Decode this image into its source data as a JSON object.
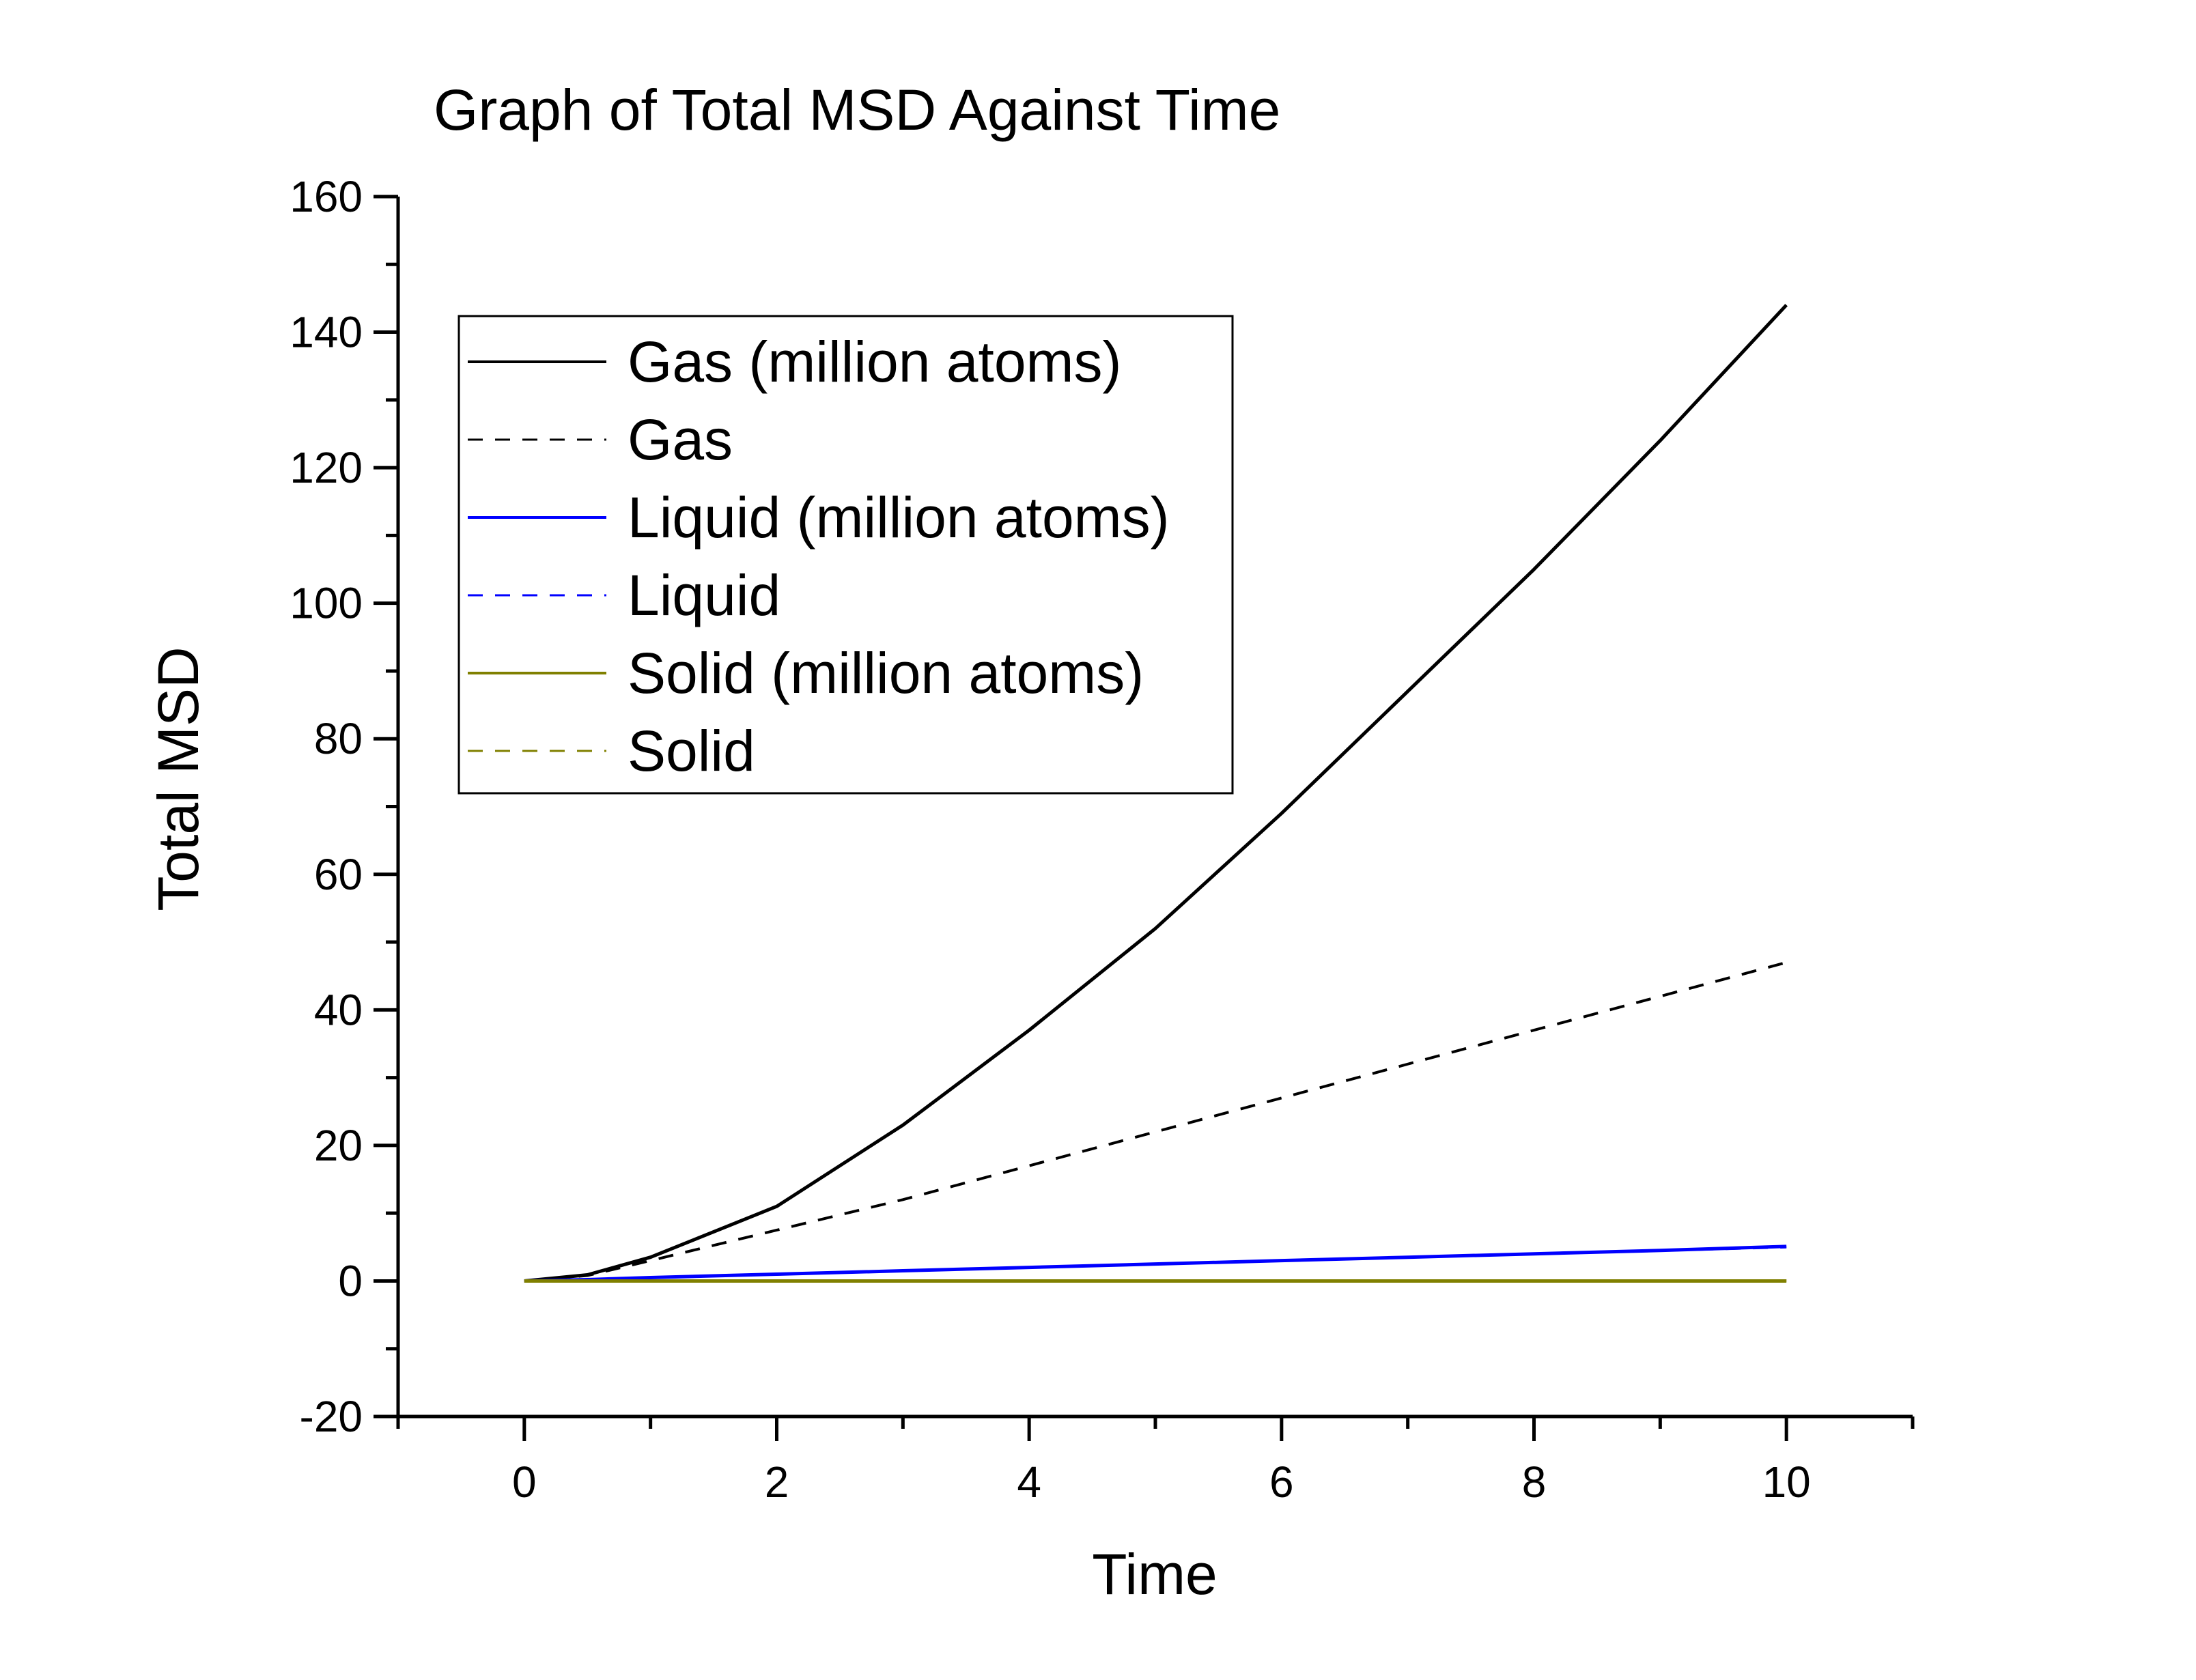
{
  "chart_data": {
    "type": "line",
    "title": "Graph of Total MSD Against Time",
    "xlabel": "Time",
    "ylabel": "Total MSD",
    "xlim": [
      -1,
      11
    ],
    "ylim": [
      -20,
      160
    ],
    "xticks": [
      "0",
      "2",
      "4",
      "6",
      "8",
      "10"
    ],
    "xtick_values": [
      0,
      2,
      4,
      6,
      8,
      10
    ],
    "yticks": [
      "-20",
      "0",
      "20",
      "40",
      "60",
      "80",
      "100",
      "120",
      "140",
      "160"
    ],
    "ytick_values": [
      -20,
      0,
      20,
      40,
      60,
      80,
      100,
      120,
      140,
      160
    ],
    "grid": false,
    "legend_position": "top-left",
    "x": [
      0,
      0.5,
      1,
      2,
      3,
      4,
      5,
      6,
      7,
      8,
      9,
      10
    ],
    "series": [
      {
        "name": "Gas (million atoms)",
        "color": "#000000",
        "dash": false,
        "values": [
          0,
          0.9,
          3.5,
          11,
          23,
          37,
          52,
          69,
          87,
          105,
          124,
          144
        ]
      },
      {
        "name": "Gas",
        "color": "#000000",
        "dash": true,
        "values": [
          0,
          0.8,
          3,
          7.5,
          12,
          17,
          22,
          27,
          32,
          37,
          42,
          47
        ]
      },
      {
        "name": "Liquid (million atoms)",
        "color": "#0000ff",
        "dash": false,
        "values": [
          0,
          0.2,
          0.5,
          1,
          1.5,
          2,
          2.5,
          3,
          3.5,
          4,
          4.5,
          5.1
        ]
      },
      {
        "name": "Liquid",
        "color": "#0000ff",
        "dash": true,
        "values": [
          0,
          0.2,
          0.5,
          1,
          1.5,
          2,
          2.5,
          3,
          3.5,
          4,
          4.5,
          5
        ]
      },
      {
        "name": "Solid (million atoms)",
        "color": "#808000",
        "dash": false,
        "values": [
          0,
          0,
          0,
          0,
          0,
          0,
          0,
          0,
          0,
          0,
          0,
          0
        ]
      },
      {
        "name": "Solid",
        "color": "#808000",
        "dash": true,
        "values": [
          0,
          0,
          0,
          0.05,
          0.05,
          0.05,
          0.05,
          0.05,
          0.05,
          0.05,
          0.05,
          0.05
        ]
      }
    ]
  }
}
